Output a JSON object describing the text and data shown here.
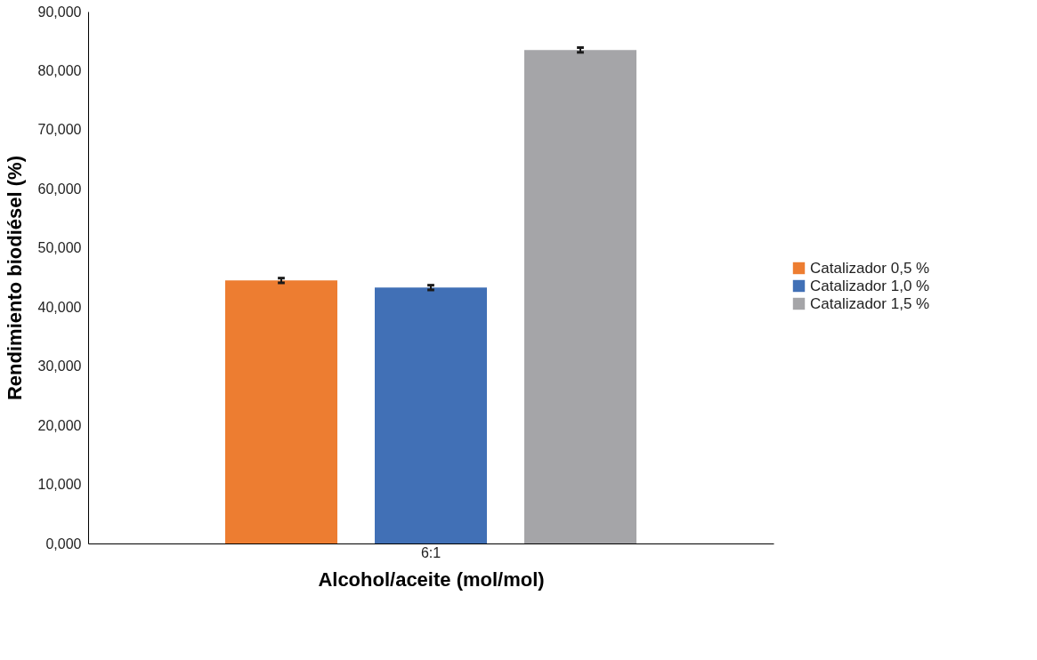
{
  "chart_data": {
    "type": "bar",
    "xlabel": "Alcohol/aceite (mol/mol)",
    "ylabel": "Rendimiento biodiésel (%)",
    "categories": [
      "6:1"
    ],
    "series": [
      {
        "name": "Catalizador 0,5 %",
        "color": "#ed7d31",
        "values": [
          44.5
        ],
        "errors": [
          0.4
        ]
      },
      {
        "name": "Catalizador 1,0 %",
        "color": "#4170b6",
        "values": [
          43.3
        ],
        "errors": [
          0.4
        ]
      },
      {
        "name": "Catalizador 1,5 %",
        "color": "#a5a5a8",
        "values": [
          83.5
        ],
        "errors": [
          0.4
        ]
      }
    ],
    "ylim": [
      0,
      90
    ],
    "yticks": [
      {
        "value": 0,
        "label": "0,000"
      },
      {
        "value": 10,
        "label": "10,000"
      },
      {
        "value": 20,
        "label": "20,000"
      },
      {
        "value": 30,
        "label": "30,000"
      },
      {
        "value": 40,
        "label": "40,000"
      },
      {
        "value": 50,
        "label": "50,000"
      },
      {
        "value": 60,
        "label": "60,000"
      },
      {
        "value": 70,
        "label": "70,000"
      },
      {
        "value": 80,
        "label": "80,000"
      },
      {
        "value": 90,
        "label": "90,000"
      }
    ],
    "grid": false,
    "legend": "right"
  }
}
